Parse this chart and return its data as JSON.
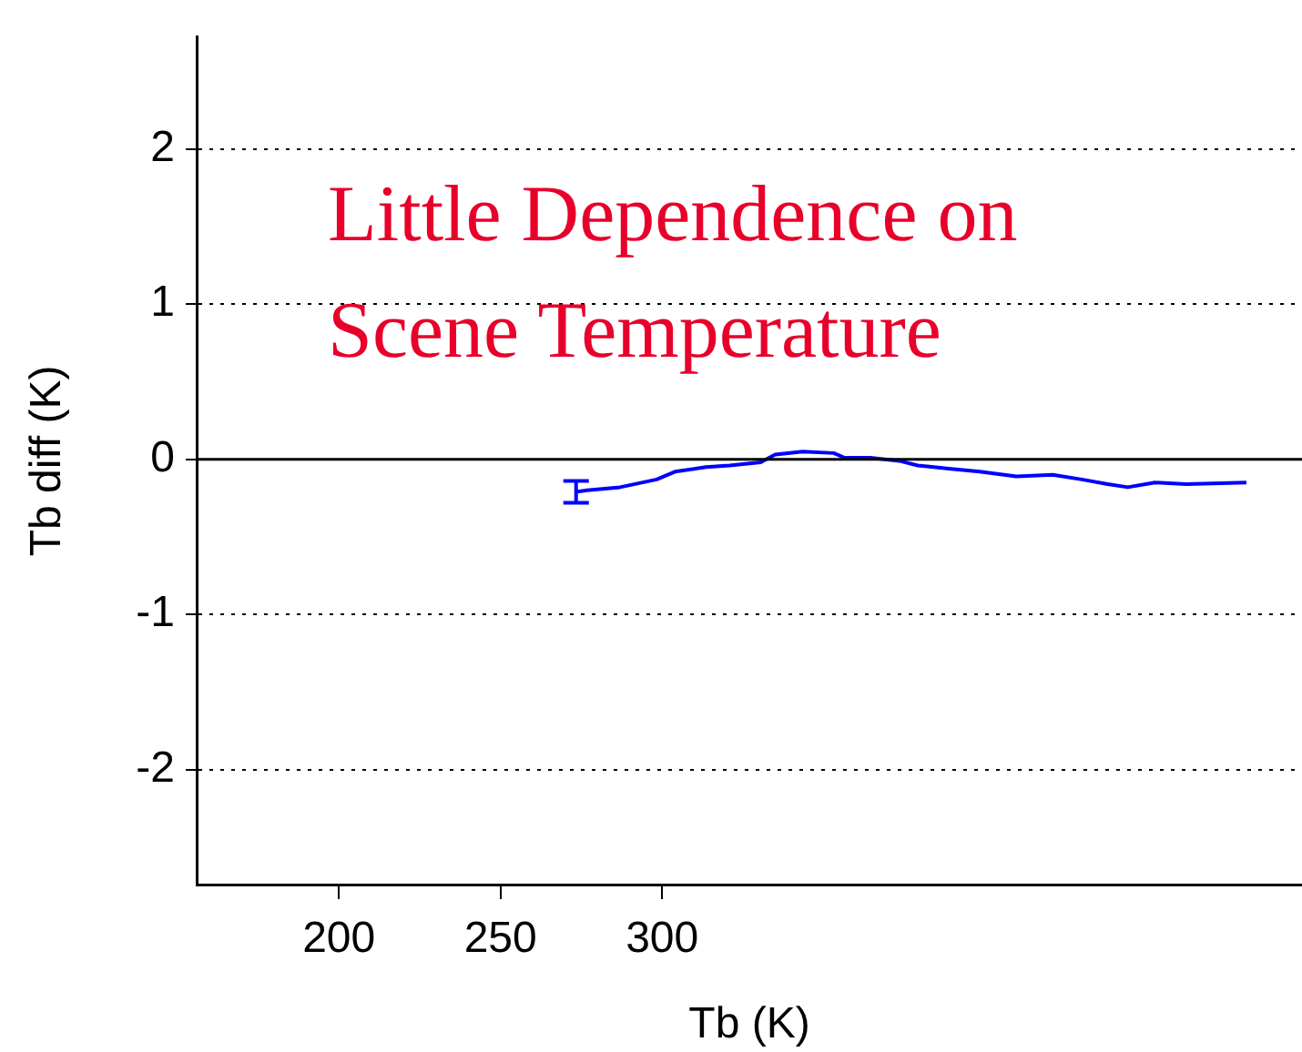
{
  "chart_data": {
    "type": "line",
    "xlabel": "Tb (K)",
    "ylabel": "Tb diff (K)",
    "annotations": [
      "Little Dependence on Scene Temperature"
    ],
    "xlim": [
      156,
      498
    ],
    "xticks": [
      200,
      250,
      300
    ],
    "ylim": [
      -2.74,
      2.72
    ],
    "yticks": [
      -2,
      -1,
      0,
      1,
      2
    ],
    "grid": "y",
    "legend": false,
    "marker": "none",
    "line_style": "solid",
    "ref_lines": [
      {
        "axis": "y",
        "value": 0,
        "color": "#000000"
      }
    ],
    "series": [
      {
        "color": "#0000ff",
        "x": [
          273.4,
          276.8,
          287,
          298.3,
          304,
          313.6,
          320.9,
          330.5,
          335,
          343.5,
          353.1,
          356.5,
          364.4,
          373.4,
          379.1,
          388.7,
          398.3,
          409.6,
          420.9,
          429.9,
          437.9,
          444.1,
          452.5,
          462.1,
          480.8
        ],
        "values": [
          -0.21,
          -0.2,
          -0.18,
          -0.13,
          -0.08,
          -0.05,
          -0.04,
          -0.02,
          0.03,
          0.05,
          0.04,
          0.01,
          0.01,
          -0.01,
          -0.04,
          -0.06,
          -0.08,
          -0.11,
          -0.1,
          -0.13,
          -0.16,
          -0.18,
          -0.15,
          -0.16,
          -0.15
        ],
        "errors": [
          [
            -0.28,
            -0.14
          ],
          null,
          null,
          null,
          null,
          null,
          null,
          null,
          null,
          null,
          null,
          null,
          null,
          null,
          null,
          null,
          null,
          null,
          null,
          null,
          null,
          null,
          null,
          null,
          null
        ]
      }
    ]
  }
}
